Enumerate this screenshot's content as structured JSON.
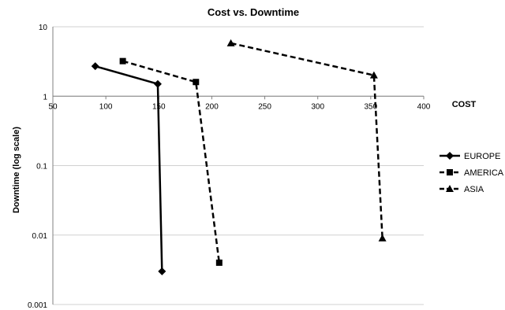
{
  "chart_data": {
    "type": "line",
    "title": "Cost vs. Downtime",
    "xlabel": "COST",
    "ylabel": "Downtime (log scale)",
    "xlim": [
      50,
      400
    ],
    "xticks": [
      50,
      100,
      150,
      200,
      250,
      300,
      350,
      400
    ],
    "ylim": [
      0.001,
      10
    ],
    "yscale": "log",
    "yticks": [
      10,
      1,
      0.1,
      0.01,
      0.001
    ],
    "ytick_labels": [
      "10",
      "1",
      "0.1",
      "0.01",
      "0.001"
    ],
    "grid": "horizontal",
    "legend_position": "right",
    "series": [
      {
        "name": "EUROPE",
        "marker": "diamond",
        "line_style": "solid",
        "color": "#000000",
        "points": [
          [
            90,
            2.7
          ],
          [
            149,
            1.5
          ],
          [
            153,
            0.003
          ]
        ]
      },
      {
        "name": "AMERICA",
        "marker": "square",
        "line_style": "dashed",
        "color": "#000000",
        "points": [
          [
            116,
            3.2
          ],
          [
            185,
            1.6
          ],
          [
            207,
            0.004
          ]
        ]
      },
      {
        "name": "ASIA",
        "marker": "triangle",
        "line_style": "dashed",
        "color": "#000000",
        "points": [
          [
            218,
            5.8
          ],
          [
            353,
            2.0
          ],
          [
            361,
            0.009
          ]
        ]
      }
    ]
  }
}
